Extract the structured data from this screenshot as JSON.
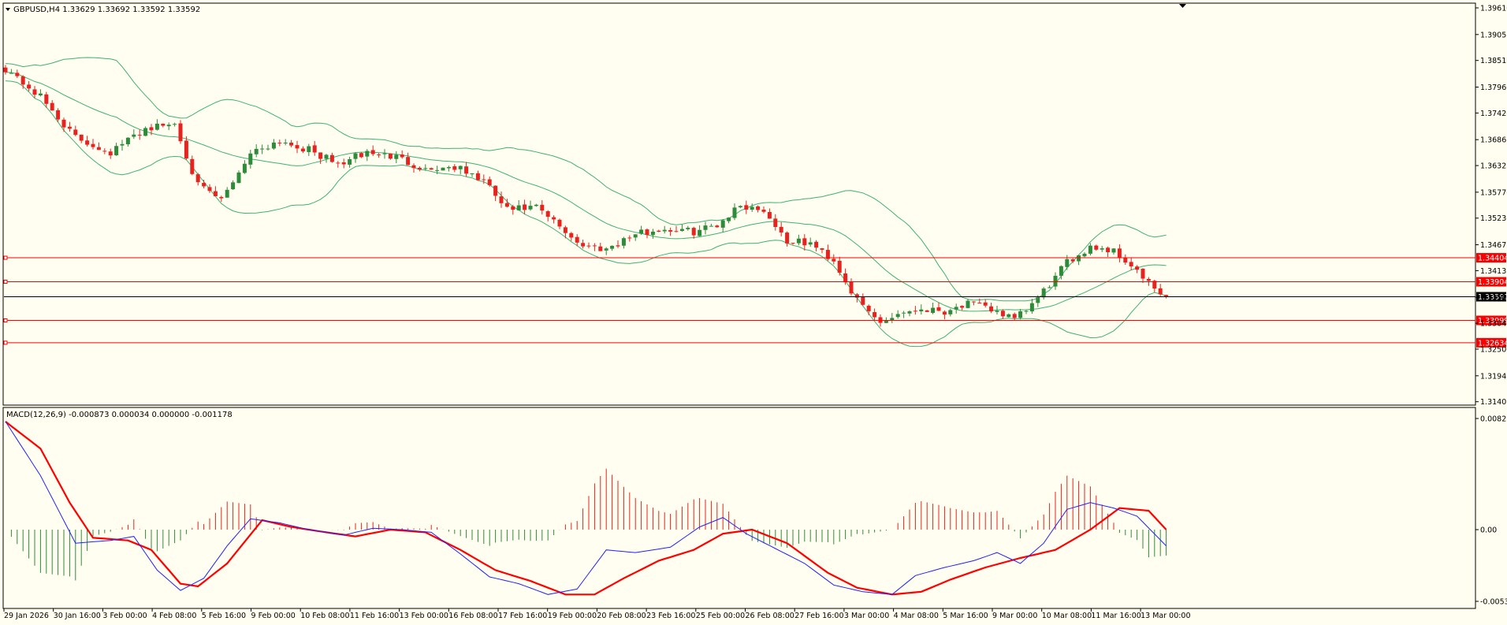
{
  "window": {
    "symbol_header": "GBPUSD,H4  1.33629 1.33692 1.33592 1.33592",
    "macd_header": "MACD(12,26,9) -0.000873 0.000034 0.000000 -0.001178"
  },
  "colors": {
    "background": "#fffef0",
    "bull": "#2e8b3a",
    "bear": "#e8221e",
    "bands": "#3cb371",
    "level_line": "#ff0000",
    "current_line": "#000000",
    "macd_line": "#2020ff",
    "signal_line": "#ff0000",
    "hist_pos": "#e8221e",
    "hist_neg": "#2e8b3a"
  },
  "chart_data": [
    {
      "type": "candlestick",
      "panel": "price",
      "symbol": "GBPUSD",
      "timeframe": "H4",
      "ylim": [
        1.314,
        1.3961
      ],
      "y_ticks": [
        "1.39610",
        "1.39055",
        "1.38515",
        "1.37960",
        "1.37420",
        "1.36865",
        "1.36325",
        "1.35770",
        "1.35230",
        "1.34675",
        "1.34135",
        "1.33580",
        "1.33040",
        "1.32500",
        "1.31945",
        "1.31405"
      ],
      "x_labels": [
        "29 Jan 2026",
        "30 Jan 16:00",
        "3 Feb 00:00",
        "4 Feb 08:00",
        "5 Feb 16:00",
        "9 Feb 00:00",
        "10 Feb 08:00",
        "11 Feb 16:00",
        "13 Feb 00:00",
        "16 Feb 08:00",
        "17 Feb 16:00",
        "19 Feb 00:00",
        "20 Feb 08:00",
        "23 Feb 16:00",
        "25 Feb 00:00",
        "26 Feb 08:00",
        "27 Feb 16:00",
        "3 Mar 00:00",
        "4 Mar 08:00",
        "5 Mar 16:00",
        "9 Mar 00:00",
        "10 Mar 08:00",
        "11 Mar 16:00",
        "13 Mar 00:00"
      ],
      "anchors": [
        [
          0,
          1.3835
        ],
        [
          6,
          1.3775
        ],
        [
          12,
          1.369
        ],
        [
          18,
          1.366
        ],
        [
          24,
          1.371
        ],
        [
          29,
          1.372
        ],
        [
          33,
          1.359
        ],
        [
          37,
          1.356
        ],
        [
          42,
          1.366
        ],
        [
          47,
          1.3685
        ],
        [
          52,
          1.3665
        ],
        [
          57,
          1.3635
        ],
        [
          62,
          1.366
        ],
        [
          67,
          1.365
        ],
        [
          72,
          1.3625
        ],
        [
          77,
          1.363
        ],
        [
          82,
          1.36
        ],
        [
          86,
          1.354
        ],
        [
          91,
          1.3545
        ],
        [
          95,
          1.3505
        ],
        [
          99,
          1.3465
        ],
        [
          103,
          1.346
        ],
        [
          108,
          1.349
        ],
        [
          113,
          1.35
        ],
        [
          118,
          1.3495
        ],
        [
          122,
          1.351
        ],
        [
          126,
          1.355
        ],
        [
          130,
          1.354
        ],
        [
          134,
          1.3475
        ],
        [
          138,
          1.347
        ],
        [
          142,
          1.3435
        ],
        [
          146,
          1.335
        ],
        [
          150,
          1.3305
        ],
        [
          153,
          1.3325
        ],
        [
          157,
          1.3335
        ],
        [
          161,
          1.333
        ],
        [
          165,
          1.3345
        ],
        [
          170,
          1.333
        ],
        [
          173,
          1.331
        ],
        [
          177,
          1.3355
        ],
        [
          182,
          1.343
        ],
        [
          186,
          1.3465
        ],
        [
          190,
          1.3455
        ],
        [
          193,
          1.3425
        ],
        [
          196,
          1.3385
        ],
        [
          199,
          1.3355
        ]
      ],
      "last_price": 1.33592,
      "indicators": [
        {
          "name": "Bollinger Bands",
          "period": 20
        }
      ],
      "horizontal_levels": [
        1.34404,
        1.33904,
        1.33099,
        1.32634
      ]
    },
    {
      "type": "macd",
      "panel": "indicator",
      "params": [
        12,
        26,
        9
      ],
      "ylim": [
        -0.00531,
        0.00823
      ],
      "y_ticks": [
        "0.00823",
        "0.00",
        "-0.00531"
      ],
      "macd_anchors": [
        [
          0,
          0.008
        ],
        [
          6,
          0.004
        ],
        [
          12,
          -0.001
        ],
        [
          18,
          -0.0008
        ],
        [
          22,
          -0.0005
        ],
        [
          26,
          -0.003
        ],
        [
          30,
          -0.0045
        ],
        [
          34,
          -0.0036
        ],
        [
          38,
          -0.0012
        ],
        [
          42,
          0.0008
        ],
        [
          47,
          0.0005
        ],
        [
          52,
          0.0
        ],
        [
          58,
          -0.0004
        ],
        [
          63,
          0.0001
        ],
        [
          68,
          0.0
        ],
        [
          73,
          -0.0002
        ],
        [
          78,
          -0.0018
        ],
        [
          83,
          -0.0035
        ],
        [
          88,
          -0.004
        ],
        [
          93,
          -0.0048
        ],
        [
          98,
          -0.0044
        ],
        [
          103,
          -0.0015
        ],
        [
          108,
          -0.0017
        ],
        [
          114,
          -0.0013
        ],
        [
          119,
          0.0002
        ],
        [
          123,
          0.0009
        ],
        [
          127,
          -0.0003
        ],
        [
          132,
          -0.0014
        ],
        [
          137,
          -0.0025
        ],
        [
          142,
          -0.0041
        ],
        [
          147,
          -0.0046
        ],
        [
          152,
          -0.0048
        ],
        [
          156,
          -0.0034
        ],
        [
          161,
          -0.0028
        ],
        [
          166,
          -0.0023
        ],
        [
          170,
          -0.0017
        ],
        [
          174,
          -0.0025
        ],
        [
          178,
          -0.001
        ],
        [
          182,
          0.0015
        ],
        [
          186,
          0.002
        ],
        [
          190,
          0.0016
        ],
        [
          194,
          0.001
        ],
        [
          199,
          -0.0012
        ]
      ],
      "signal_anchors": [
        [
          0,
          0.008
        ],
        [
          6,
          0.006
        ],
        [
          11,
          0.002
        ],
        [
          15,
          -0.0006
        ],
        [
          21,
          -0.0008
        ],
        [
          25,
          -0.0015
        ],
        [
          30,
          -0.004
        ],
        [
          33,
          -0.0042
        ],
        [
          38,
          -0.0025
        ],
        [
          44,
          0.0007
        ],
        [
          49,
          0.0002
        ],
        [
          55,
          -0.0002
        ],
        [
          60,
          -0.0005
        ],
        [
          66,
          0.0
        ],
        [
          72,
          -0.0002
        ],
        [
          78,
          -0.0015
        ],
        [
          84,
          -0.003
        ],
        [
          90,
          -0.0038
        ],
        [
          96,
          -0.0048
        ],
        [
          101,
          -0.0048
        ],
        [
          106,
          -0.0036
        ],
        [
          112,
          -0.0023
        ],
        [
          118,
          -0.0015
        ],
        [
          123,
          -0.0003
        ],
        [
          128,
          0.0
        ],
        [
          134,
          -0.001
        ],
        [
          141,
          -0.0032
        ],
        [
          146,
          -0.0043
        ],
        [
          152,
          -0.0048
        ],
        [
          157,
          -0.0046
        ],
        [
          162,
          -0.0037
        ],
        [
          168,
          -0.0028
        ],
        [
          174,
          -0.0021
        ],
        [
          180,
          -0.0015
        ],
        [
          186,
          0.0
        ],
        [
          191,
          0.0016
        ],
        [
          196,
          0.0014
        ],
        [
          199,
          0.0
        ]
      ],
      "histogram_enabled": true
    }
  ],
  "price_tags": [
    {
      "label": "1.34404",
      "value": 1.34404,
      "kind": "level"
    },
    {
      "label": "1.33904",
      "value": 1.33904,
      "kind": "level"
    },
    {
      "label": "1.33592",
      "value": 1.33592,
      "kind": "current"
    },
    {
      "label": "1.33099",
      "value": 1.33099,
      "kind": "level"
    },
    {
      "label": "1.32634",
      "value": 1.32634,
      "kind": "level"
    }
  ]
}
